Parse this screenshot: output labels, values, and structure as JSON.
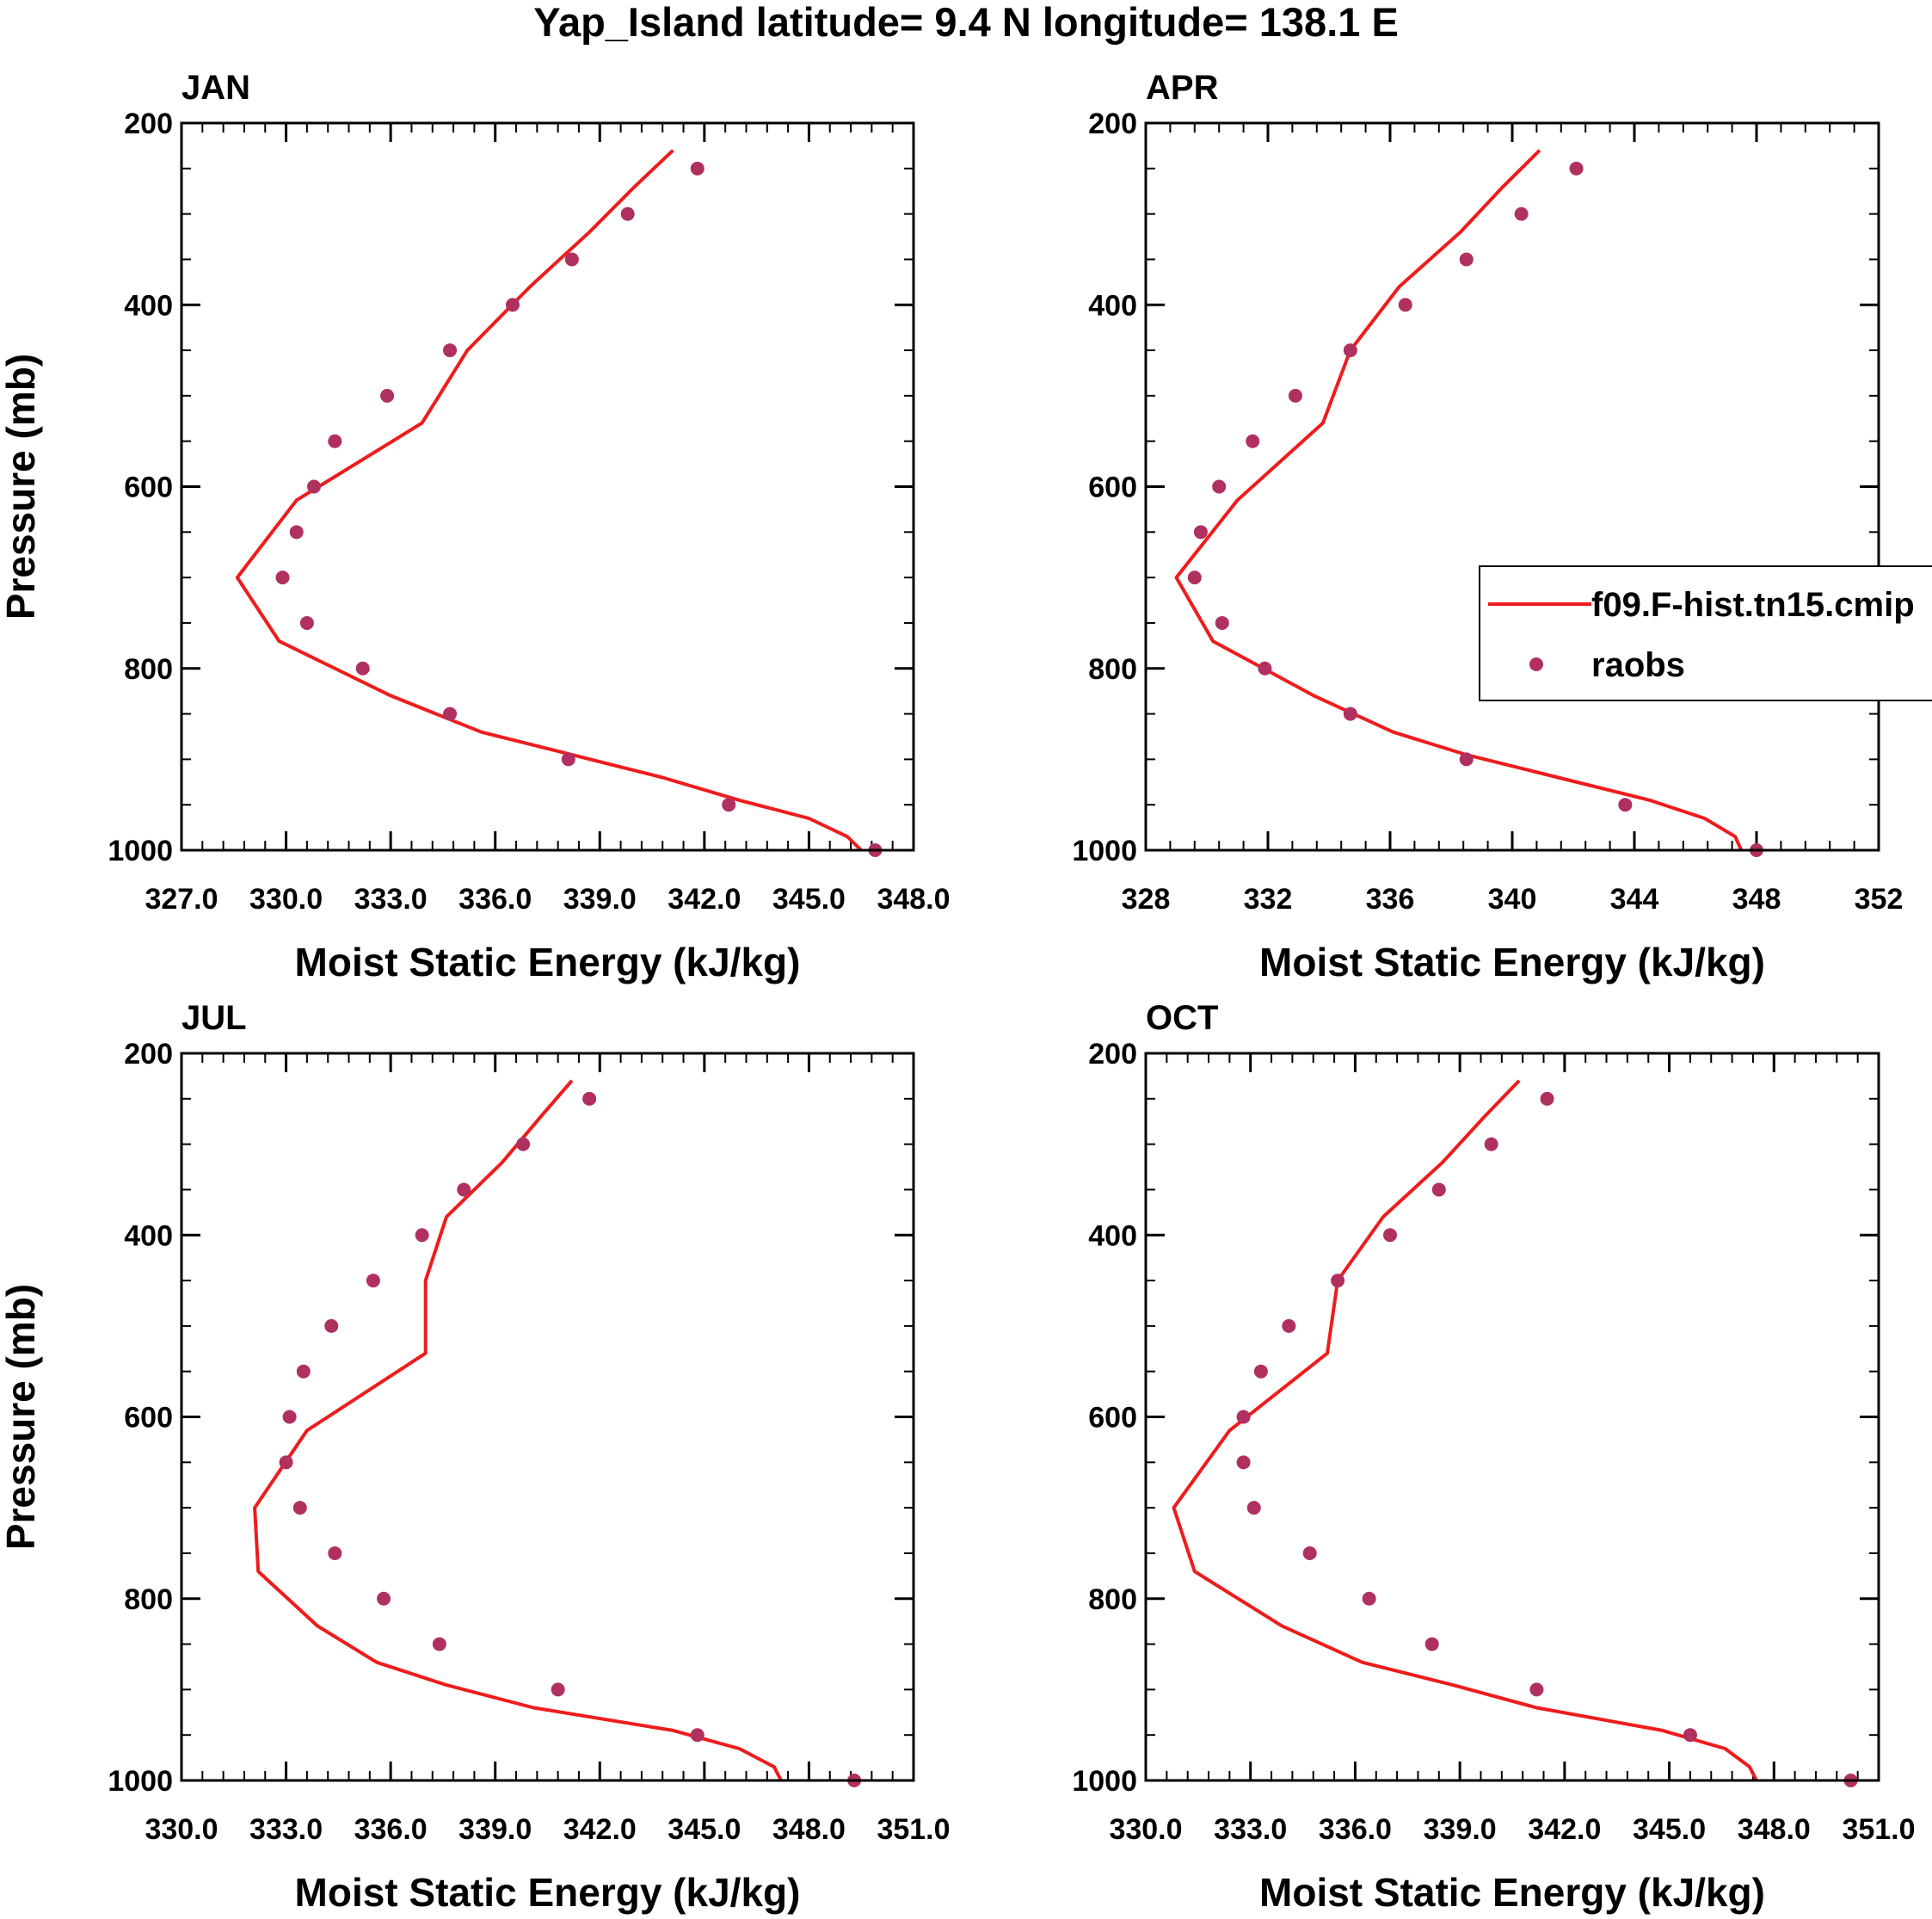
{
  "figure_title": "Yap_Island  latitude= 9.4 N longitude= 138.1 E",
  "legend": {
    "model_label": "f09.F-hist.tn15.cmip",
    "obs_label": "raobs"
  },
  "colors": {
    "model_line": "#ee1c1c",
    "obs_marker": "#b03060",
    "axis": "#000000"
  },
  "chart_data": [
    {
      "type": "line",
      "panel_label": "JAN",
      "xlabel": "Moist Static Energy (kJ/kg)",
      "ylabel": "Pressure (mb)",
      "xlim": [
        327,
        348
      ],
      "ylim": [
        1000,
        200
      ],
      "x_ticks": [
        "327.0",
        "330.0",
        "333.0",
        "336.0",
        "339.0",
        "342.0",
        "345.0",
        "348.0"
      ],
      "x_tick_values": [
        327,
        330,
        333,
        336,
        339,
        342,
        345,
        348
      ],
      "y_ticks": [
        "200",
        "400",
        "600",
        "800",
        "1000"
      ],
      "series": [
        {
          "name": "f09.F-hist.tn15.cmip",
          "kind": "line",
          "pressure": [
            1000,
            985,
            965,
            945,
            920,
            895,
            870,
            830,
            770,
            700,
            615,
            530,
            450,
            380,
            320,
            270,
            230
          ],
          "values": [
            346.5,
            346.1,
            345.0,
            343.0,
            340.8,
            338.2,
            335.6,
            333.0,
            329.8,
            328.6,
            330.3,
            333.9,
            335.2,
            337.0,
            338.7,
            340.0,
            341.1
          ]
        },
        {
          "name": "raobs",
          "kind": "scatter",
          "pressure": [
            250,
            300,
            350,
            400,
            450,
            500,
            550,
            600,
            650,
            700,
            750,
            800,
            850,
            900,
            950,
            1000
          ],
          "values": [
            341.8,
            339.8,
            338.2,
            336.5,
            334.7,
            332.9,
            331.4,
            330.8,
            330.3,
            329.9,
            330.6,
            332.2,
            334.7,
            338.1,
            342.7,
            346.9
          ]
        }
      ]
    },
    {
      "type": "line",
      "panel_label": "APR",
      "xlabel": "Moist Static Energy (kJ/kg)",
      "ylabel": "",
      "xlim": [
        328,
        352
      ],
      "ylim": [
        1000,
        200
      ],
      "x_ticks": [
        "328",
        "332",
        "336",
        "340",
        "344",
        "348",
        "352"
      ],
      "x_tick_values": [
        328,
        332,
        336,
        340,
        344,
        348,
        352
      ],
      "y_ticks": [
        "200",
        "400",
        "600",
        "800",
        "1000"
      ],
      "series": [
        {
          "name": "f09.F-hist.tn15.cmip",
          "kind": "line",
          "pressure": [
            1000,
            985,
            965,
            945,
            920,
            895,
            870,
            830,
            770,
            700,
            615,
            530,
            450,
            380,
            320,
            270,
            230
          ],
          "values": [
            347.5,
            347.3,
            346.3,
            344.5,
            341.5,
            338.5,
            336.1,
            333.5,
            330.2,
            329.0,
            331.0,
            333.8,
            334.7,
            336.3,
            338.3,
            339.7,
            340.9
          ]
        },
        {
          "name": "raobs",
          "kind": "scatter",
          "pressure": [
            250,
            300,
            350,
            400,
            450,
            500,
            550,
            600,
            650,
            700,
            750,
            800,
            850,
            900,
            950,
            1000
          ],
          "values": [
            342.1,
            340.3,
            338.5,
            336.5,
            334.7,
            332.9,
            331.5,
            330.4,
            329.8,
            329.6,
            330.5,
            331.9,
            334.7,
            338.5,
            343.7,
            348.0
          ]
        }
      ]
    },
    {
      "type": "line",
      "panel_label": "JUL",
      "xlabel": "Moist Static Energy (kJ/kg)",
      "ylabel": "Pressure (mb)",
      "xlim": [
        330,
        351
      ],
      "ylim": [
        1000,
        200
      ],
      "x_ticks": [
        "330.0",
        "333.0",
        "336.0",
        "339.0",
        "342.0",
        "345.0",
        "348.0",
        "351.0"
      ],
      "x_tick_values": [
        330,
        333,
        336,
        339,
        342,
        345,
        348,
        351
      ],
      "y_ticks": [
        "200",
        "400",
        "600",
        "800",
        "1000"
      ],
      "series": [
        {
          "name": "f09.F-hist.tn15.cmip",
          "kind": "line",
          "pressure": [
            1000,
            985,
            965,
            945,
            920,
            895,
            870,
            830,
            770,
            700,
            615,
            530,
            450,
            380,
            320,
            270,
            230
          ],
          "values": [
            347.2,
            347.0,
            346.0,
            344.1,
            340.1,
            337.6,
            335.6,
            333.9,
            332.2,
            332.1,
            333.6,
            337.0,
            337.0,
            337.6,
            339.2,
            340.3,
            341.2
          ]
        },
        {
          "name": "raobs",
          "kind": "scatter",
          "pressure": [
            250,
            300,
            350,
            400,
            450,
            500,
            550,
            600,
            650,
            700,
            750,
            800,
            850,
            900,
            950,
            1000
          ],
          "values": [
            341.7,
            339.8,
            338.1,
            336.9,
            335.5,
            334.3,
            333.5,
            333.1,
            333.0,
            333.4,
            334.4,
            335.8,
            337.4,
            340.8,
            344.8,
            349.3
          ]
        }
      ]
    },
    {
      "type": "line",
      "panel_label": "OCT",
      "xlabel": "Moist Static Energy (kJ/kg)",
      "ylabel": "",
      "xlim": [
        330,
        351
      ],
      "ylim": [
        1000,
        200
      ],
      "x_ticks": [
        "330.0",
        "333.0",
        "336.0",
        "339.0",
        "342.0",
        "345.0",
        "348.0",
        "351.0"
      ],
      "x_tick_values": [
        330,
        333,
        336,
        339,
        342,
        345,
        348,
        351
      ],
      "y_ticks": [
        "200",
        "400",
        "600",
        "800",
        "1000"
      ],
      "series": [
        {
          "name": "f09.F-hist.tn15.cmip",
          "kind": "line",
          "pressure": [
            1000,
            985,
            965,
            945,
            920,
            895,
            870,
            830,
            770,
            700,
            615,
            530,
            450,
            380,
            320,
            270,
            230
          ],
          "values": [
            347.5,
            347.3,
            346.6,
            344.8,
            341.2,
            338.8,
            336.2,
            333.9,
            331.4,
            330.8,
            332.4,
            335.2,
            335.5,
            336.8,
            338.5,
            339.7,
            340.7
          ]
        },
        {
          "name": "raobs",
          "kind": "scatter",
          "pressure": [
            250,
            300,
            350,
            400,
            450,
            500,
            550,
            600,
            650,
            700,
            750,
            800,
            850,
            900,
            950,
            1000
          ],
          "values": [
            341.5,
            339.9,
            338.4,
            337.0,
            335.5,
            334.1,
            333.3,
            332.8,
            332.8,
            333.1,
            334.7,
            336.4,
            338.2,
            341.2,
            345.6,
            350.2
          ]
        }
      ]
    }
  ]
}
